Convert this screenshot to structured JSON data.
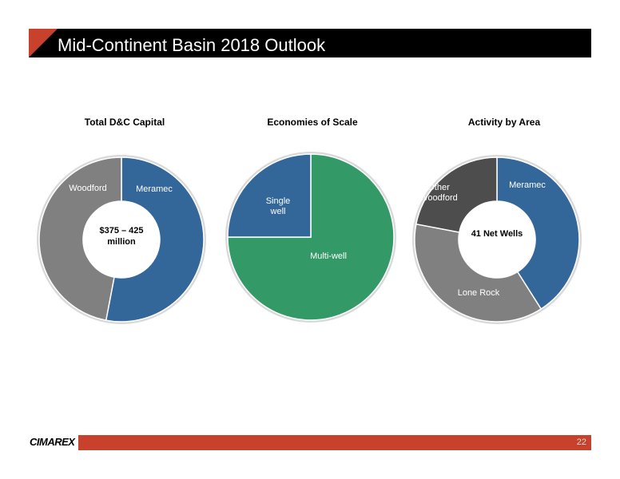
{
  "header": {
    "title": "Mid-Continent Basin 2018 Outlook"
  },
  "footer": {
    "page_number": "22",
    "logo_text": "CIMAREX"
  },
  "colors": {
    "accent": "#c7412d",
    "blue": "#336699",
    "gray": "#808080",
    "dark_gray": "#4d4d4d",
    "green": "#339966"
  },
  "chart_data": [
    {
      "type": "pie",
      "title": "Total D&C Capital",
      "center_label": [
        "$375 – 425",
        "million"
      ],
      "slices": [
        {
          "label": "Meramec",
          "value": 53,
          "color": "#336699"
        },
        {
          "label": "Woodford",
          "value": 47,
          "color": "#808080"
        }
      ]
    },
    {
      "type": "pie",
      "title": "Economies of Scale",
      "slices": [
        {
          "label": "Multi-well",
          "value": 75,
          "color": "#339966"
        },
        {
          "label": "Single well",
          "value": 25,
          "color": "#336699"
        }
      ]
    },
    {
      "type": "pie",
      "title": "Activity by Area",
      "center_label": [
        "41 Net Wells"
      ],
      "slices": [
        {
          "label": "Meramec",
          "value": 41,
          "color": "#336699"
        },
        {
          "label": "Lone Rock",
          "value": 37,
          "color": "#808080"
        },
        {
          "label": "Other Woodford",
          "value": 22,
          "color": "#4d4d4d"
        }
      ]
    }
  ]
}
